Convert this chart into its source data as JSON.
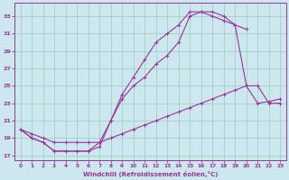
{
  "xlabel": "Windchill (Refroidissement éolien,°C)",
  "bg_color": "#cce8ee",
  "line_color": "#993399",
  "grid_color": "#99ccbb",
  "text_color": "#993399",
  "xlim": [
    -0.5,
    23.5
  ],
  "ylim": [
    16.5,
    34.5
  ],
  "yticks": [
    17,
    19,
    21,
    23,
    25,
    27,
    29,
    31,
    33
  ],
  "xticks": [
    0,
    1,
    2,
    3,
    4,
    5,
    6,
    7,
    8,
    9,
    10,
    11,
    12,
    13,
    14,
    15,
    16,
    17,
    18,
    19,
    20,
    21,
    22,
    23
  ],
  "line1_x": [
    0,
    1,
    2,
    3,
    4,
    5,
    6,
    7,
    8,
    9,
    10,
    11,
    12,
    13,
    14,
    15,
    16,
    17,
    18,
    19,
    20,
    21,
    22,
    23
  ],
  "line1_y": [
    20,
    19,
    18.5,
    17.5,
    17.5,
    17.5,
    17.5,
    18,
    21,
    24,
    26,
    28,
    30,
    31,
    32,
    33.5,
    33.5,
    33.5,
    33,
    32,
    25,
    25,
    23,
    23
  ],
  "line2_x": [
    0,
    1,
    2,
    3,
    4,
    5,
    6,
    7,
    8,
    9,
    10,
    11,
    12,
    13,
    14,
    15,
    16,
    17,
    18,
    19,
    20
  ],
  "line2_y": [
    20,
    19,
    18.5,
    17.5,
    17.5,
    17.5,
    17.5,
    18.5,
    21,
    23.5,
    25,
    26,
    27.5,
    28.5,
    30,
    33,
    33.5,
    33,
    32.5,
    32,
    31.5
  ],
  "line3_x": [
    0,
    1,
    2,
    3,
    4,
    5,
    6,
    7,
    8,
    9,
    10,
    11,
    12,
    13,
    14,
    15,
    16,
    17,
    18,
    19,
    20,
    21,
    22,
    23
  ],
  "line3_y": [
    20,
    19.5,
    19,
    18.5,
    18.5,
    18.5,
    18.5,
    18.5,
    19,
    19.5,
    20,
    20.5,
    21,
    21.5,
    22,
    22.5,
    23,
    23.5,
    24,
    24.5,
    25,
    23,
    23.2,
    23.5
  ]
}
